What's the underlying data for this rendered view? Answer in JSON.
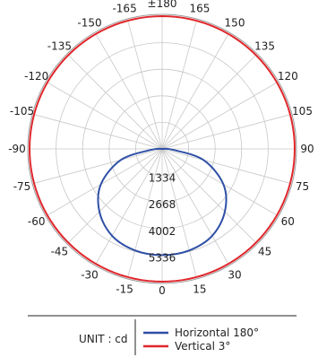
{
  "chart_data": {
    "type": "polar",
    "angle_unit": "degrees",
    "angle_labels": [
      "±180",
      "165",
      "150",
      "135",
      "120",
      "105",
      "90",
      "75",
      "60",
      "45",
      "30",
      "15",
      "0",
      "-15",
      "-30",
      "-45",
      "-60",
      "-75",
      "-90",
      "-105",
      "-120",
      "-135",
      "-150",
      "-165"
    ],
    "radial_ticks": [
      1334,
      2668,
      4002,
      5336
    ],
    "radial_max": 6670,
    "grid": true,
    "legend": {
      "unit_label": "UNIT : cd",
      "placement": "bottom"
    },
    "series": [
      {
        "name": "Horizontal 180°",
        "color": "#2e4fa6",
        "points": [
          {
            "angle": 0,
            "value": 5336
          },
          {
            "angle": 15,
            "value": 5280
          },
          {
            "angle": 30,
            "value": 5040
          },
          {
            "angle": 45,
            "value": 4460
          },
          {
            "angle": 60,
            "value": 3560
          },
          {
            "angle": 75,
            "value": 2150
          },
          {
            "angle": 85,
            "value": 560
          },
          {
            "angle": 90,
            "value": 0
          },
          {
            "angle": -85,
            "value": 560
          },
          {
            "angle": -75,
            "value": 2150
          },
          {
            "angle": -60,
            "value": 3560
          },
          {
            "angle": -45,
            "value": 4460
          },
          {
            "angle": -30,
            "value": 5040
          },
          {
            "angle": -15,
            "value": 5280
          }
        ]
      },
      {
        "name": "Vertical 3°",
        "color": "#e0262b",
        "points": [
          {
            "angle": 0,
            "value": 6670
          },
          {
            "angle": 15,
            "value": 6670
          },
          {
            "angle": 30,
            "value": 6670
          },
          {
            "angle": 45,
            "value": 6670
          },
          {
            "angle": 60,
            "value": 6670
          },
          {
            "angle": 75,
            "value": 6670
          },
          {
            "angle": 90,
            "value": 6670
          },
          {
            "angle": 105,
            "value": 6670
          },
          {
            "angle": 120,
            "value": 6670
          },
          {
            "angle": 135,
            "value": 6670
          },
          {
            "angle": 150,
            "value": 6670
          },
          {
            "angle": 165,
            "value": 6670
          },
          {
            "angle": 180,
            "value": 6670
          },
          {
            "angle": -165,
            "value": 6670
          },
          {
            "angle": -150,
            "value": 6670
          },
          {
            "angle": -135,
            "value": 6670
          },
          {
            "angle": -120,
            "value": 6670
          },
          {
            "angle": -105,
            "value": 6670
          },
          {
            "angle": -90,
            "value": 6670
          },
          {
            "angle": -75,
            "value": 6670
          },
          {
            "angle": -60,
            "value": 6670
          },
          {
            "angle": -45,
            "value": 6670
          },
          {
            "angle": -30,
            "value": 6670
          },
          {
            "angle": -15,
            "value": 6670
          }
        ]
      }
    ]
  }
}
